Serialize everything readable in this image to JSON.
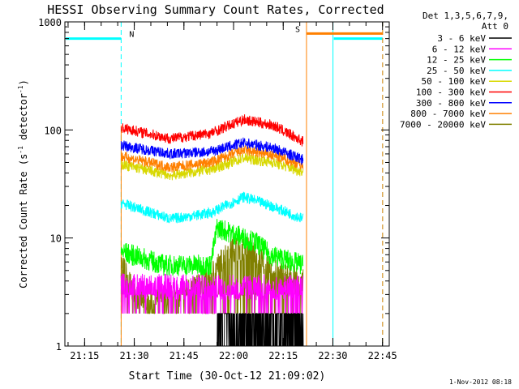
{
  "chart_data": {
    "type": "line",
    "title": "HESSI Observing Summary Count Rates, Corrected",
    "xlabel": "Start Time (30-Oct-12 21:09:02)",
    "ylabel_main": "Corrected Count Rate (s",
    "ylabel_sup1": "-1",
    "ylabel_mid": " detector",
    "ylabel_sup2": "-1",
    "ylabel_end": ")",
    "xlim_minutes": [
      0,
      98
    ],
    "ylim": [
      1,
      1000
    ],
    "yscale": "log",
    "x_ticks": [
      "21:15",
      "21:30",
      "21:45",
      "22:00",
      "22:15",
      "22:30",
      "22:45"
    ],
    "y_ticks": [
      "1",
      "10",
      "100",
      "1000"
    ],
    "detectors_line1": "Det 1,3,5,6,7,9,",
    "detectors_line2": "Att 0",
    "footer": "1-Nov-2012 08:18",
    "flags": {
      "night_label": "N",
      "saa_label": "S",
      "night_color": "#00ffff",
      "saa_color": "#ff8000",
      "night_periods": [
        [
          0,
          17
        ],
        [
          81,
          96
        ]
      ],
      "saa_periods": [
        [
          73,
          96
        ]
      ],
      "night_level": 700,
      "saa_level": 780
    },
    "data_interval": [
      17,
      73
    ],
    "series": [
      {
        "name": "3 - 6 keV",
        "color": "#000000",
        "values": [
          {
            "x": 46,
            "y": 1
          },
          {
            "x": 62,
            "y": 1.7
          },
          {
            "x": 72,
            "y": 1
          }
        ]
      },
      {
        "name": "6 - 12 keV",
        "color": "#ff00ff",
        "values": [
          {
            "x": 17,
            "y": 3.6
          },
          {
            "x": 45,
            "y": 3.5
          },
          {
            "x": 72,
            "y": 3.5
          }
        ]
      },
      {
        "name": "12 - 25 keV",
        "color": "#00ff00",
        "values": [
          {
            "x": 17,
            "y": 7.5
          },
          {
            "x": 30,
            "y": 5.6
          },
          {
            "x": 44,
            "y": 5.6
          },
          {
            "x": 46,
            "y": 12.5
          },
          {
            "x": 58,
            "y": 9
          },
          {
            "x": 62,
            "y": 7
          },
          {
            "x": 72,
            "y": 5.6
          }
        ]
      },
      {
        "name": "25 - 50 keV",
        "color": "#00ffff",
        "values": [
          {
            "x": 17,
            "y": 21
          },
          {
            "x": 32,
            "y": 15
          },
          {
            "x": 44,
            "y": 17
          },
          {
            "x": 54,
            "y": 24
          },
          {
            "x": 62,
            "y": 20
          },
          {
            "x": 72,
            "y": 15
          }
        ]
      },
      {
        "name": "50 - 100 keV",
        "color": "#d8d800",
        "values": [
          {
            "x": 17,
            "y": 48
          },
          {
            "x": 32,
            "y": 38
          },
          {
            "x": 44,
            "y": 43
          },
          {
            "x": 54,
            "y": 55
          },
          {
            "x": 63,
            "y": 50
          },
          {
            "x": 72,
            "y": 41
          }
        ]
      },
      {
        "name": "100 - 300 keV",
        "color": "#ff0000",
        "values": [
          {
            "x": 17,
            "y": 105
          },
          {
            "x": 32,
            "y": 83
          },
          {
            "x": 44,
            "y": 93
          },
          {
            "x": 54,
            "y": 125
          },
          {
            "x": 63,
            "y": 110
          },
          {
            "x": 72,
            "y": 78
          }
        ]
      },
      {
        "name": "300 - 800 keV",
        "color": "#0000ff",
        "values": [
          {
            "x": 17,
            "y": 72
          },
          {
            "x": 32,
            "y": 60
          },
          {
            "x": 44,
            "y": 63
          },
          {
            "x": 54,
            "y": 76
          },
          {
            "x": 63,
            "y": 68
          },
          {
            "x": 72,
            "y": 53
          }
        ]
      },
      {
        "name": "800 - 7000 keV",
        "color": "#ff8000",
        "values": [
          {
            "x": 17,
            "y": 57
          },
          {
            "x": 32,
            "y": 45
          },
          {
            "x": 44,
            "y": 50
          },
          {
            "x": 54,
            "y": 65
          },
          {
            "x": 63,
            "y": 58
          },
          {
            "x": 72,
            "y": 47
          }
        ]
      },
      {
        "name": "7000 - 20000 keV",
        "color": "#808000",
        "values": [
          {
            "x": 17,
            "y": 6
          },
          {
            "x": 21,
            "y": 3
          },
          {
            "x": 25,
            "y": 2.5
          },
          {
            "x": 35,
            "y": 3
          },
          {
            "x": 44,
            "y": 4.5
          },
          {
            "x": 50,
            "y": 8
          },
          {
            "x": 56,
            "y": 8
          },
          {
            "x": 62,
            "y": 5
          },
          {
            "x": 72,
            "y": 4
          }
        ]
      }
    ]
  }
}
